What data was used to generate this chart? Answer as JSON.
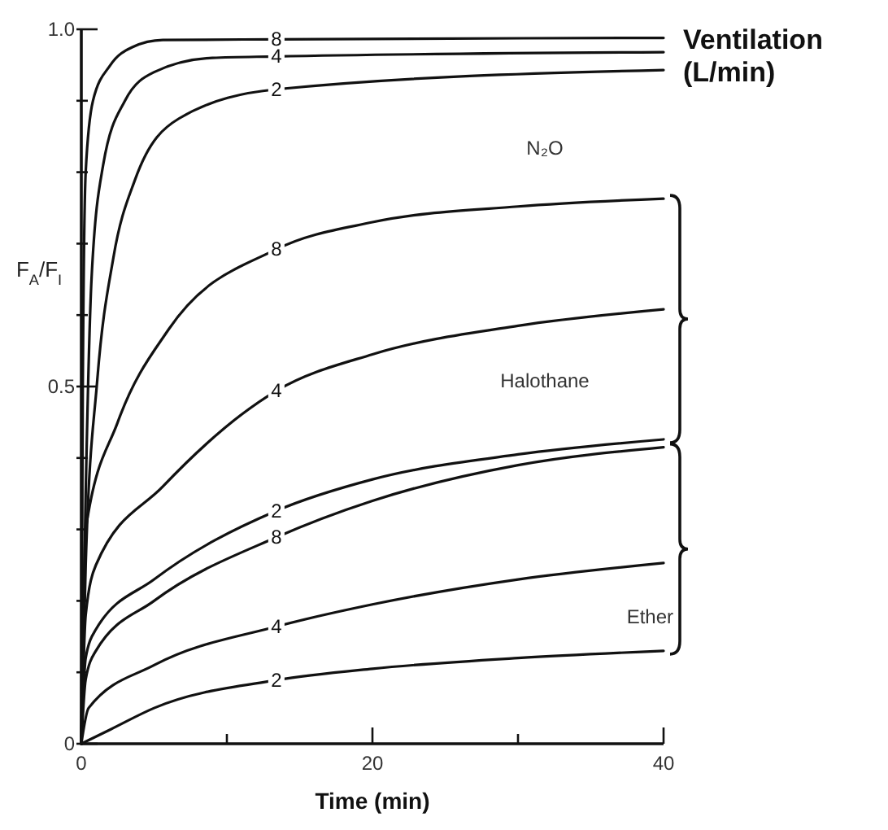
{
  "chart_data": {
    "type": "line",
    "xlabel": "Time (min)",
    "ylabel": "F$_{A}$/F$_{I}$",
    "xlim": [
      0,
      40
    ],
    "ylim": [
      0,
      1
    ],
    "xticks": [
      0,
      {
        "value": 10,
        "label": null
      },
      20,
      {
        "value": 30,
        "label": null
      },
      40
    ],
    "yticks": [
      {
        "value": 0,
        "label": "0"
      },
      {
        "value": 0.1,
        "label": null
      },
      {
        "value": 0.2,
        "label": null
      },
      {
        "value": 0.3,
        "label": null
      },
      {
        "value": 0.4,
        "label": null
      },
      0.5,
      {
        "value": 0.6,
        "label": null
      },
      {
        "value": 0.7,
        "label": null
      },
      {
        "value": 0.8,
        "label": null
      },
      {
        "value": 0.9,
        "label": null
      },
      {
        "value": 1,
        "label": "1.0"
      }
    ],
    "grid": false,
    "marker": "none",
    "line_style": "solid",
    "series": [
      {
        "name": "8",
        "color": "#111111",
        "x": [
          0,
          0.1,
          0.3,
          0.8,
          2,
          3.5,
          5.6,
          13.4,
          40
        ],
        "values": [
          0,
          0.5,
          0.8,
          0.9,
          0.95,
          0.975,
          0.985,
          0.986,
          0.988
        ]
      },
      {
        "name": "4",
        "color": "#111111",
        "x": [
          0,
          0.3,
          0.7,
          1.5,
          3,
          5,
          9,
          13.4,
          40
        ],
        "values": [
          0,
          0.35,
          0.65,
          0.81,
          0.9,
          0.94,
          0.96,
          0.962,
          0.968
        ]
      },
      {
        "name": "2",
        "color": "#111111",
        "x": [
          0,
          0.3,
          1.1,
          2.2,
          3.7,
          6.7,
          13.4,
          40
        ],
        "values": [
          0,
          0.25,
          0.51,
          0.68,
          0.79,
          0.875,
          0.916,
          0.943
        ]
      },
      {
        "name": "8",
        "color": "#111111",
        "x": [
          0,
          0.3,
          2.5,
          6,
          13.4,
          20,
          30,
          40
        ],
        "values": [
          0,
          0.3,
          0.45,
          0.58,
          0.692,
          0.73,
          0.752,
          0.763
        ]
      },
      {
        "name": "4",
        "color": "#111111",
        "x": [
          0,
          0.3,
          1,
          5.6,
          13.4,
          20,
          30,
          40
        ],
        "values": [
          0,
          0.18,
          0.25,
          0.36,
          0.494,
          0.545,
          0.585,
          0.608
        ]
      },
      {
        "name": "2",
        "color": "#111111",
        "x": [
          0,
          0.3,
          1,
          5,
          13.4,
          20,
          30,
          40
        ],
        "values": [
          0,
          0.12,
          0.16,
          0.23,
          0.326,
          0.37,
          0.405,
          0.426
        ]
      },
      {
        "name": "8",
        "color": "#111111",
        "x": [
          0,
          0.3,
          1,
          5,
          13.4,
          20,
          30,
          40
        ],
        "values": [
          0,
          0.09,
          0.13,
          0.2,
          0.289,
          0.34,
          0.39,
          0.415
        ]
      },
      {
        "name": "4",
        "color": "#111111",
        "x": [
          0,
          0.5,
          5,
          13.4,
          20,
          30,
          40
        ],
        "values": [
          0,
          0.05,
          0.11,
          0.164,
          0.195,
          0.23,
          0.253
        ]
      },
      {
        "name": "2",
        "color": "#111111",
        "x": [
          0,
          2,
          5,
          13.4,
          20,
          30,
          40
        ],
        "values": [
          0,
          0.02,
          0.05,
          0.089,
          0.105,
          0.12,
          0.13
        ]
      }
    ],
    "annotations": [
      "Ventilation (L/min)",
      "N₂O",
      "Halothane",
      "Ether"
    ]
  }
}
